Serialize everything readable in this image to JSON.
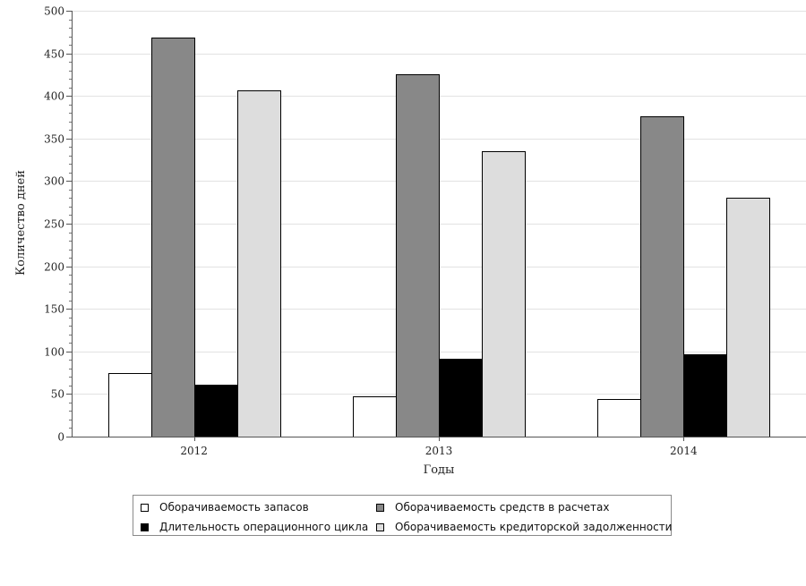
{
  "chart_data": {
    "type": "bar",
    "categories": [
      "2012",
      "2013",
      "2014"
    ],
    "series": [
      {
        "name": "Оборачиваемость запасов",
        "values": [
          75,
          47,
          44
        ],
        "color": "#ffffff"
      },
      {
        "name": "Оборачиваемость средств в расчетах",
        "values": [
          468,
          425,
          376
        ],
        "color": "#888888"
      },
      {
        "name": "Длительность операционного цикла",
        "values": [
          61,
          91,
          97
        ],
        "color": "#000000"
      },
      {
        "name": "Оборачиваемость кредиторской задолженности",
        "values": [
          407,
          335,
          280
        ],
        "color": "#dddddd"
      }
    ],
    "xlabel": "Годы",
    "ylabel": "Количество дней",
    "ylim": [
      0,
      500
    ],
    "yticks": [
      0,
      50,
      100,
      150,
      200,
      250,
      300,
      350,
      400,
      450,
      500
    ],
    "grid": true,
    "legend_position": "bottom"
  },
  "legend": {
    "items": [
      {
        "label": "Оборачиваемость запасов",
        "color": "#ffffff"
      },
      {
        "label": "Оборачиваемость средств в расчетах",
        "color": "#888888"
      },
      {
        "label": "Длительность операционного цикла",
        "color": "#000000"
      },
      {
        "label": "Оборачиваемость кредиторской задолженности",
        "color": "#dddddd"
      }
    ]
  }
}
